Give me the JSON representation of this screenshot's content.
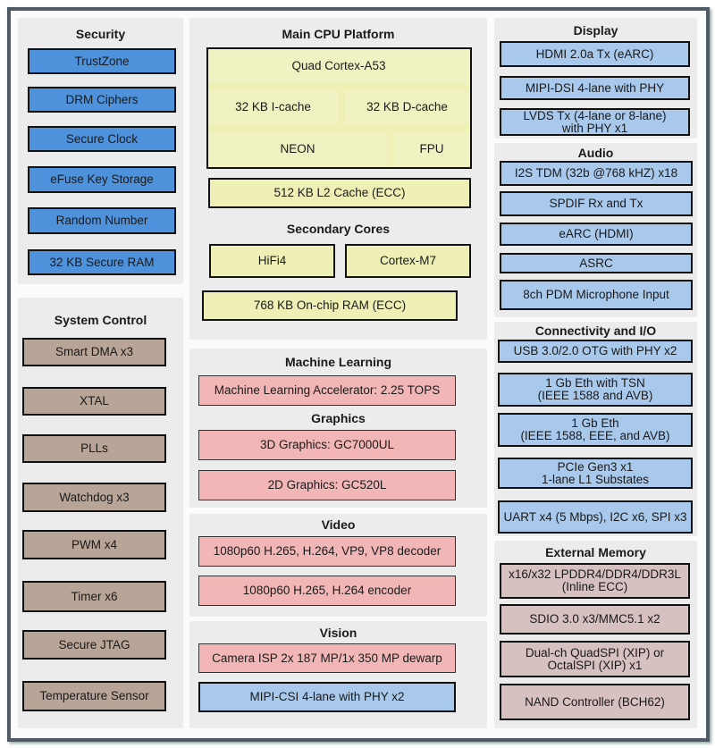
{
  "colors": {
    "security": "#4d92db",
    "interface": "#a9c9ec",
    "cpu": "#eef0b6",
    "accelerator": "#f2b6b6",
    "system_control": "#b8a598",
    "memory": "#d7c0c0",
    "frame": "#505a66"
  },
  "security": {
    "title": "Security",
    "items": [
      "TrustZone",
      "DRM Ciphers",
      "Secure Clock",
      "eFuse Key Storage",
      "Random Number",
      "32 KB Secure RAM"
    ]
  },
  "system_control": {
    "title": "System Control",
    "items": [
      "Smart DMA x3",
      "XTAL",
      "PLLs",
      "Watchdog x3",
      "PWM x4",
      "Timer x6",
      "Secure JTAG",
      "Temperature Sensor"
    ]
  },
  "main_cpu": {
    "title": "Main CPU Platform",
    "core": "Quad Cortex-A53",
    "icache": "32 KB I-cache",
    "dcache": "32 KB D-cache",
    "neon": "NEON",
    "fpu": "FPU",
    "l2": "512 KB L2 Cache (ECC)"
  },
  "secondary": {
    "title": "Secondary Cores",
    "items": [
      "HiFi4",
      "Cortex-M7"
    ],
    "ram": "768 KB On-chip RAM (ECC)"
  },
  "ml": {
    "title": "Machine Learning",
    "items": [
      "Machine Learning Accelerator: 2.25 TOPS"
    ]
  },
  "graphics": {
    "title": "Graphics",
    "items": [
      "3D Graphics: GC7000UL",
      "2D Graphics: GC520L"
    ]
  },
  "video": {
    "title": "Video",
    "items": [
      "1080p60 H.265, H.264, VP9, VP8 decoder",
      "1080p60 H.265, H.264 encoder"
    ]
  },
  "vision": {
    "title": "Vision",
    "items": [
      "Camera ISP 2x 187 MP/1x 350 MP dewarp",
      "MIPI-CSI 4-lane with PHY x2"
    ]
  },
  "display": {
    "title": "Display",
    "items": [
      "HDMI 2.0a  Tx (eARC)",
      "MIPI-DSI 4-lane with PHY",
      "LVDS Tx (4-lane or 8-lane)\nwith PHY x1"
    ]
  },
  "audio": {
    "title": "Audio",
    "items": [
      "I2S TDM (32b @768 kHZ) x18",
      "SPDIF Rx and Tx",
      "eARC (HDMI)",
      "ASRC",
      "8ch PDM Microphone Input"
    ]
  },
  "connectivity": {
    "title": "Connectivity and I/O",
    "items": [
      "USB 3.0/2.0 OTG with PHY x2",
      "1 Gb Eth with TSN\n(IEEE 1588 and AVB)",
      "1 Gb Eth\n(IEEE 1588, EEE, and AVB)",
      "PCIe Gen3 x1\n1-lane L1 Substates",
      "UART x4 (5 Mbps), I2C x6, SPI x3"
    ]
  },
  "external_memory": {
    "title": "External Memory",
    "items": [
      "x16/x32 LPDDR4/DDR4/DDR3L\n(Inline ECC)",
      "SDIO 3.0 x3/MMC5.1 x2",
      "Dual-ch QuadSPI (XIP) or\nOctalSPI (XIP) x1",
      "NAND Controller (BCH62)"
    ]
  }
}
